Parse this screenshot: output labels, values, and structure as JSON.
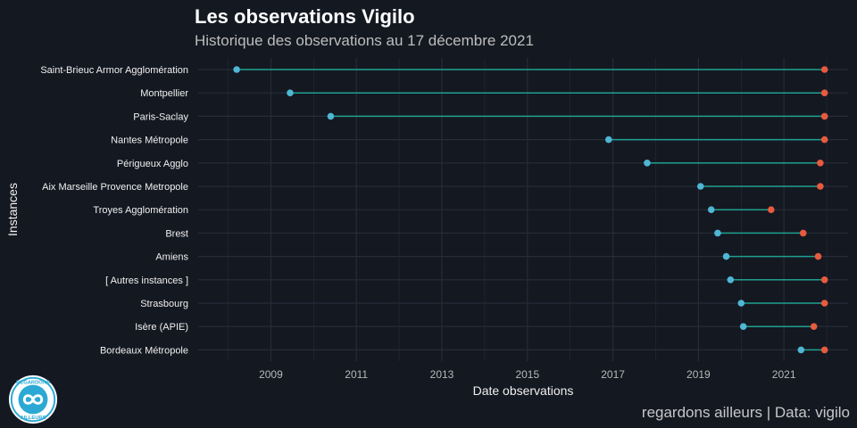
{
  "header": {
    "title": "Les observations Vigilo",
    "subtitle": "Historique des observations au 17 décembre 2021"
  },
  "caption": "regardons ailleurs | Data: vigilo",
  "logo": {
    "icon": "regardons-ailleurs-logo",
    "text_top": "REGARDONS",
    "text_bottom": "AILLEURS"
  },
  "colors": {
    "background": "#141821",
    "grid": "#262c38",
    "segment": "#1fa08f",
    "start_point": "#4fb6d4",
    "end_point": "#e85a3e"
  },
  "chart_data": {
    "type": "dumbbell",
    "xlabel": "Date observations",
    "ylabel": "Instances",
    "xlim": [
      2007.3,
      2022.5
    ],
    "xticks": [
      2009,
      2011,
      2013,
      2015,
      2017,
      2019,
      2021
    ],
    "grid": true,
    "categories": [
      "Saint-Brieuc Armor Agglomération",
      "Montpellier",
      "Paris-Saclay",
      "Nantes Métropole",
      "Périgueux Agglo",
      "Aix Marseille Provence Metropole",
      "Troyes Agglomération",
      "Brest",
      "Amiens",
      "[ Autres instances ]",
      "Strasbourg",
      "Isère (APIE)",
      "Bordeaux Métropole"
    ],
    "first_observation": [
      2008.2,
      2009.45,
      2010.4,
      2016.9,
      2017.8,
      2019.05,
      2019.3,
      2019.45,
      2019.65,
      2019.75,
      2020.0,
      2020.05,
      2021.4
    ],
    "last_observation": [
      2021.95,
      2021.95,
      2021.95,
      2021.95,
      2021.85,
      2021.85,
      2020.7,
      2021.45,
      2021.8,
      2021.95,
      2021.95,
      2021.7,
      2021.95
    ]
  }
}
